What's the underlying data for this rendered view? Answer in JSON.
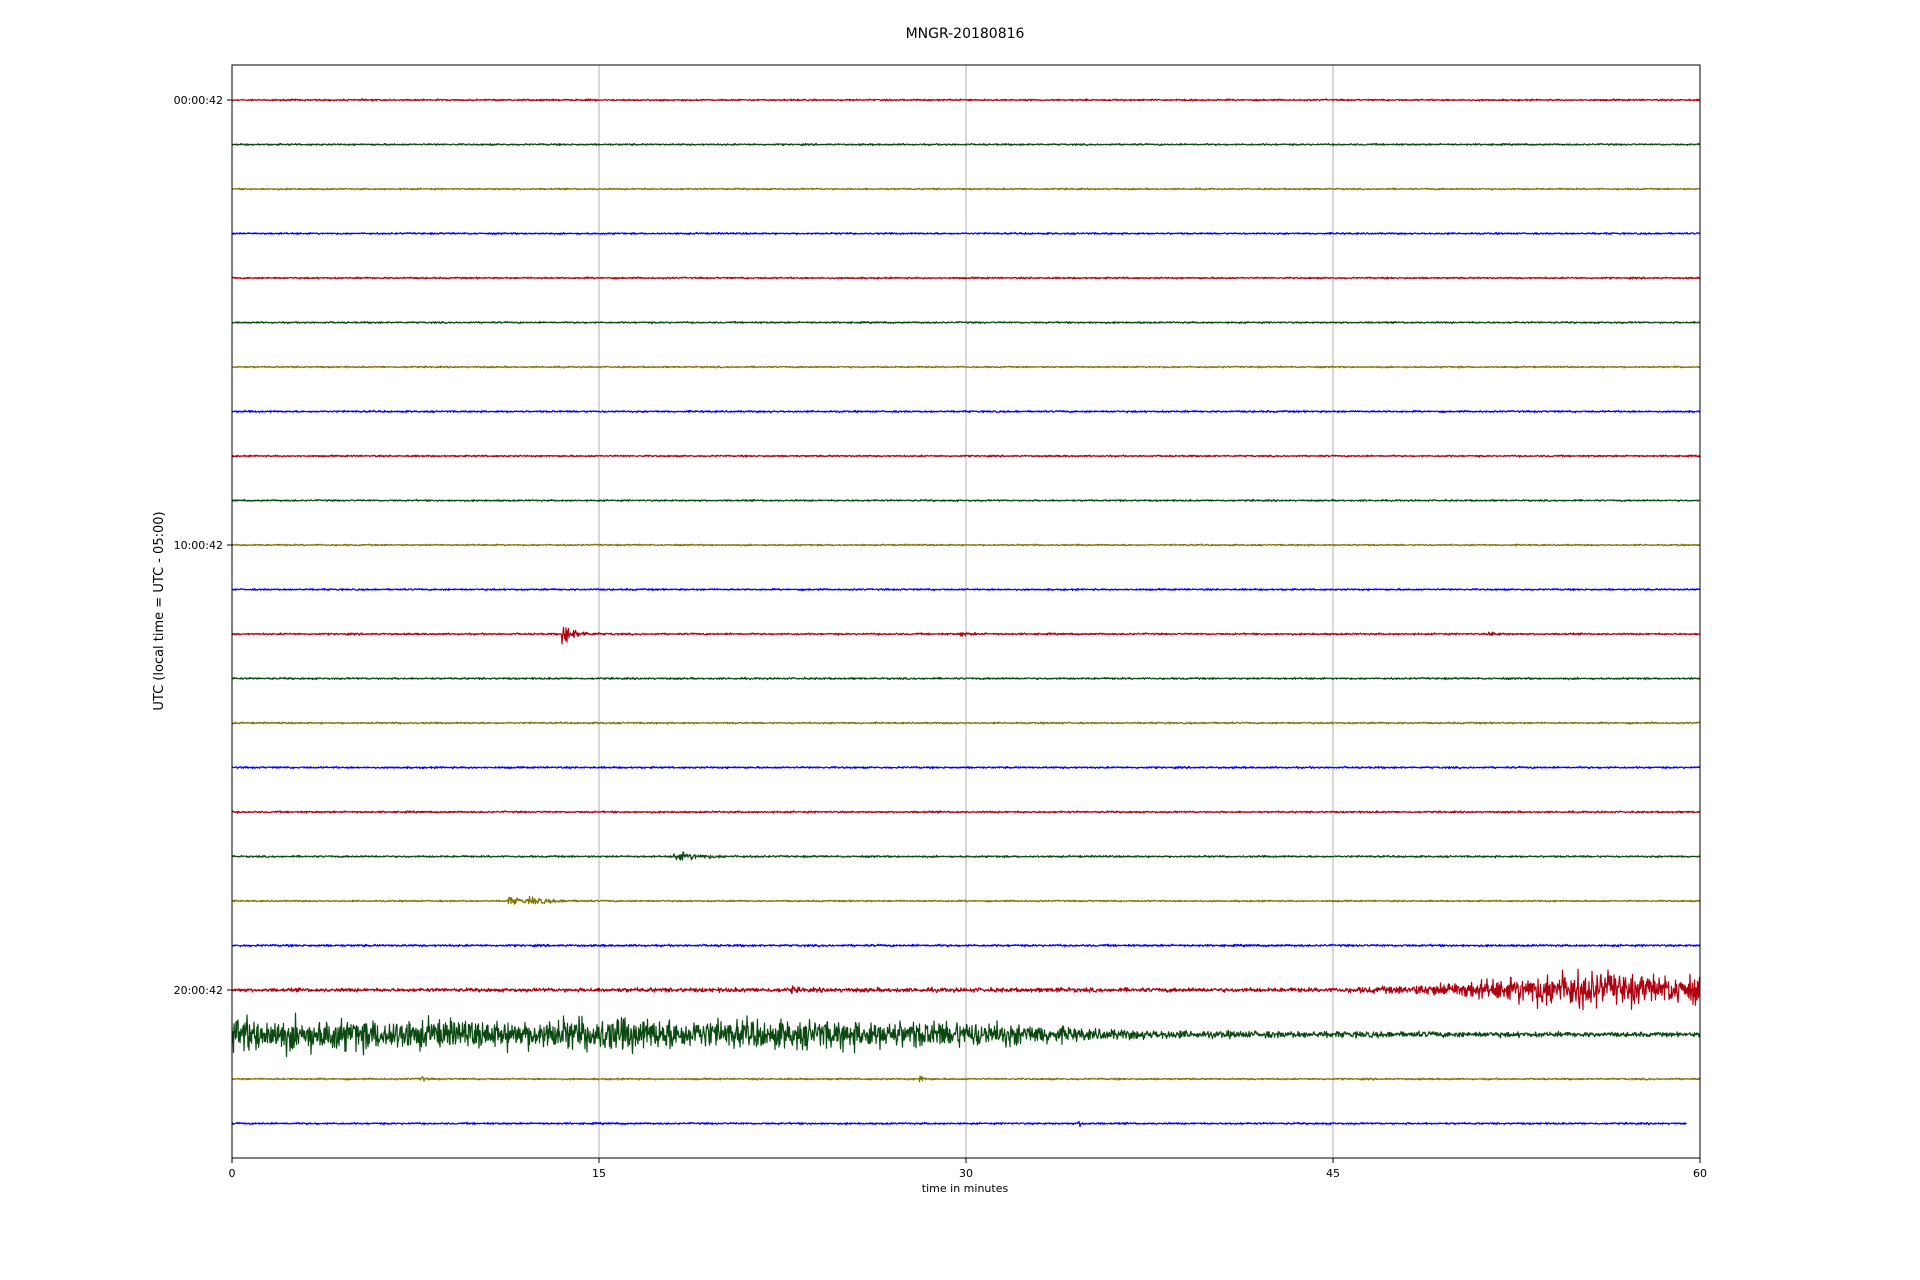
{
  "chart_data": {
    "type": "line",
    "title": "MNGR-20180816",
    "xlabel": "time in minutes",
    "ylabel": "UTC (local time = UTC - 05:00)",
    "xlim": [
      0,
      60
    ],
    "x_ticks": [
      0,
      15,
      30,
      45,
      60
    ],
    "x_tick_labels": [
      "0",
      "15",
      "30",
      "45",
      "60"
    ],
    "y_ticks": [
      {
        "row": 0,
        "label": "00:00:42"
      },
      {
        "row": 10,
        "label": "10:00:42"
      },
      {
        "row": 20,
        "label": "20:00:42"
      }
    ],
    "grid": "vertical",
    "colors": [
      "#b00010",
      "#0a4a10",
      "#807000",
      "#0000ff"
    ],
    "row_count": 24,
    "trace_end_minutes": [
      60,
      60,
      60,
      60,
      60,
      60,
      60,
      60,
      60,
      60,
      60,
      60,
      60,
      60,
      60,
      60,
      60,
      60,
      60,
      60,
      60,
      60,
      60,
      59.45
    ],
    "noise_amplitude": [
      1.2,
      1.2,
      1.1,
      1.2,
      1.2,
      1.2,
      1.1,
      1.3,
      1.2,
      1.2,
      1.1,
      1.2,
      1.3,
      1.3,
      1.2,
      1.3,
      1.3,
      1.3,
      1.1,
      1.5,
      2.5,
      1.4,
      1.2,
      1.3
    ],
    "events": [
      {
        "row": 12,
        "t": 13.5,
        "amp": 16,
        "decay": 0.45
      },
      {
        "row": 12,
        "t": 29.8,
        "amp": 3,
        "decay": 0.3
      },
      {
        "row": 12,
        "t": 51.4,
        "amp": 3,
        "decay": 0.3
      },
      {
        "row": 17,
        "t": 18.1,
        "amp": 7,
        "decay": 0.9
      },
      {
        "row": 18,
        "t": 11.3,
        "amp": 5,
        "decay": 0.9
      },
      {
        "row": 18,
        "t": 12.2,
        "amp": 4,
        "decay": 0.6
      },
      {
        "row": 20,
        "t": 22.9,
        "amp": 4,
        "decay": 0.12
      },
      {
        "row": 20,
        "t": 33.7,
        "amp": 4,
        "decay": 0.12
      },
      {
        "row": 22,
        "t": 7.7,
        "amp": 6,
        "decay": 0.12
      },
      {
        "row": 22,
        "t": 28.1,
        "amp": 7,
        "decay": 0.15
      },
      {
        "row": 23,
        "t": 34.6,
        "amp": 4,
        "decay": 0.15
      }
    ],
    "envelopes": [
      {
        "row": 20,
        "points": [
          [
            0,
            1.5
          ],
          [
            10,
            2
          ],
          [
            15,
            3
          ],
          [
            30,
            3
          ],
          [
            45,
            3
          ],
          [
            48,
            6
          ],
          [
            52,
            16
          ],
          [
            54.5,
            28
          ],
          [
            56,
            24
          ],
          [
            58,
            20
          ],
          [
            60,
            20
          ]
        ]
      },
      {
        "row": 21,
        "points": [
          [
            0,
            24
          ],
          [
            7,
            22
          ],
          [
            10,
            19
          ],
          [
            15,
            24
          ],
          [
            18,
            22
          ],
          [
            20,
            20
          ],
          [
            25,
            20
          ],
          [
            30,
            19
          ],
          [
            33,
            14
          ],
          [
            35,
            8
          ],
          [
            40,
            5
          ],
          [
            50,
            4
          ],
          [
            60,
            3
          ]
        ]
      }
    ]
  }
}
